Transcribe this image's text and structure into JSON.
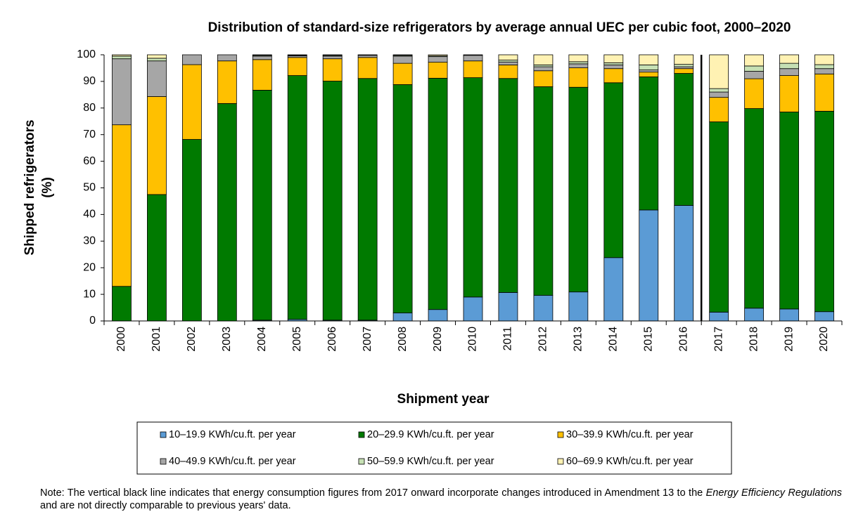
{
  "chart_data": {
    "type": "stacked_bar",
    "title": "Distribution of standard-size refrigerators by average annual UEC per cubic foot, 2000–2020",
    "ylabel": [
      "Shipped refrigerators",
      "(%)"
    ],
    "xlabel": "Shipment year",
    "categories": [
      "2000",
      "2001",
      "2002",
      "2003",
      "2004",
      "2005",
      "2006",
      "2007",
      "2008",
      "2009",
      "2010",
      "2011",
      "2012",
      "2013",
      "2014",
      "2015",
      "2016",
      "2017",
      "2018",
      "2019",
      "2020"
    ],
    "series": [
      {
        "name": "10–19.9 KWh/cu.ft. per year",
        "color": "#5b9bd5",
        "values": [
          0,
          0,
          0,
          0,
          0.3,
          0.6,
          0.3,
          0.3,
          3,
          4.3,
          9,
          10.7,
          9.6,
          10.9,
          23.8,
          41.7,
          43.4,
          3.3,
          4.8,
          4.5,
          3.5
        ]
      },
      {
        "name": "20–29.9 KWh/cu.ft. per year",
        "color": "#007a00",
        "values": [
          13,
          47.5,
          68.2,
          81.7,
          86.4,
          91.6,
          89.8,
          90.8,
          85.8,
          86.9,
          82.4,
          80.4,
          78.4,
          76.9,
          65.7,
          50,
          49.6,
          71.5,
          75,
          74,
          75.3
        ]
      },
      {
        "name": "30–39.9 KWh/cu.ft. per year",
        "color": "#ffc000",
        "values": [
          60.7,
          36.8,
          28.1,
          16,
          11.5,
          6.8,
          8.4,
          7.9,
          8,
          6,
          6.3,
          5.1,
          6,
          7.3,
          5.3,
          1.8,
          1.8,
          9.2,
          11.2,
          13.7,
          14
        ]
      },
      {
        "name": "40–49.9 KWh/cu.ft. per year",
        "color": "#a6a6a6",
        "values": [
          24.8,
          13.4,
          3.7,
          2.3,
          1.3,
          0.6,
          1,
          0.8,
          2.7,
          2.1,
          2.1,
          1.1,
          1.5,
          1.5,
          1.4,
          0.8,
          0.7,
          2,
          2.8,
          2.6,
          2
        ]
      },
      {
        "name": "50–59.9 KWh/cu.ft. per year",
        "color": "#c6e0b4",
        "values": [
          1,
          1,
          0,
          0,
          0.3,
          0.2,
          0.3,
          0.1,
          0.3,
          0.3,
          0.2,
          0.7,
          0.7,
          0.8,
          0.8,
          1.9,
          0.9,
          1.3,
          2,
          2,
          1.5
        ]
      },
      {
        "name": "60–69.9 KWh/cu.ft. per year",
        "color": "#fff2b3",
        "values": [
          0.5,
          1.3,
          0,
          0,
          0.2,
          0.2,
          0.2,
          0.1,
          0.2,
          0.4,
          0,
          2,
          3.8,
          2.6,
          3,
          3.8,
          3.6,
          12.7,
          4.2,
          3.2,
          3.7
        ]
      }
    ],
    "ylim": [
      0,
      100
    ],
    "yticks": [
      0,
      10,
      20,
      30,
      40,
      50,
      60,
      70,
      80,
      90,
      100
    ],
    "grid": false,
    "divider_before": "2017",
    "note": [
      "Note: The vertical black line indicates that energy consumption figures from 2017 onward incorporate changes introduced in Amendment  13 to the ",
      "Energy Efficiency Regulations",
      " and are not directly comparable to previous years' data."
    ]
  }
}
